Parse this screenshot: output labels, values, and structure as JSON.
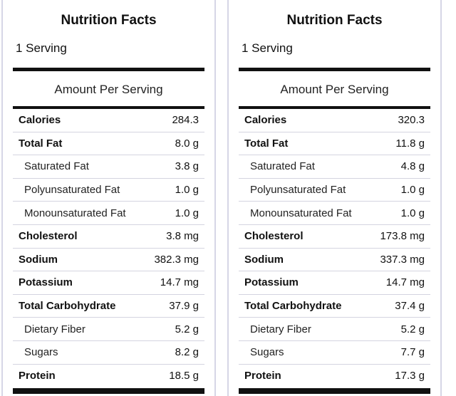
{
  "panels": [
    {
      "title": "Nutrition Facts",
      "serving": "1 Serving",
      "amount_header": "Amount Per Serving",
      "rows": [
        {
          "label": "Calories",
          "value": "284.3",
          "style": "bold"
        },
        {
          "label": "Total Fat",
          "value": "8.0 g",
          "style": "bold"
        },
        {
          "label": "Saturated Fat",
          "value": "3.8 g",
          "style": "sub"
        },
        {
          "label": "Polyunsaturated Fat",
          "value": "1.0 g",
          "style": "sub"
        },
        {
          "label": "Monounsaturated Fat",
          "value": "1.0 g",
          "style": "sub"
        },
        {
          "label": "Cholesterol",
          "value": "3.8 mg",
          "style": "bold"
        },
        {
          "label": "Sodium",
          "value": "382.3 mg",
          "style": "bold"
        },
        {
          "label": "Potassium",
          "value": "14.7 mg",
          "style": "bold"
        },
        {
          "label": "Total Carbohydrate",
          "value": "37.9 g",
          "style": "bold"
        },
        {
          "label": "Dietary Fiber",
          "value": "5.2 g",
          "style": "sub"
        },
        {
          "label": "Sugars",
          "value": "8.2 g",
          "style": "sub"
        },
        {
          "label": "Protein",
          "value": "18.5 g",
          "style": "bold"
        }
      ]
    },
    {
      "title": "Nutrition Facts",
      "serving": "1 Serving",
      "amount_header": "Amount Per Serving",
      "rows": [
        {
          "label": "Calories",
          "value": "320.3",
          "style": "bold"
        },
        {
          "label": "Total Fat",
          "value": "11.8 g",
          "style": "bold"
        },
        {
          "label": "Saturated Fat",
          "value": "4.8 g",
          "style": "sub"
        },
        {
          "label": "Polyunsaturated Fat",
          "value": "1.0 g",
          "style": "sub"
        },
        {
          "label": "Monounsaturated Fat",
          "value": "1.0 g",
          "style": "sub"
        },
        {
          "label": "Cholesterol",
          "value": "173.8 mg",
          "style": "bold"
        },
        {
          "label": "Sodium",
          "value": "337.3 mg",
          "style": "bold"
        },
        {
          "label": "Potassium",
          "value": "14.7 mg",
          "style": "bold"
        },
        {
          "label": "Total Carbohydrate",
          "value": "37.4 g",
          "style": "bold"
        },
        {
          "label": "Dietary Fiber",
          "value": "5.2 g",
          "style": "sub"
        },
        {
          "label": "Sugars",
          "value": "7.7 g",
          "style": "sub"
        },
        {
          "label": "Protein",
          "value": "17.3 g",
          "style": "bold"
        }
      ]
    }
  ],
  "colors": {
    "rule": "#111111",
    "divider": "#d4d4e0",
    "panel_border": "#d6d6e6"
  }
}
